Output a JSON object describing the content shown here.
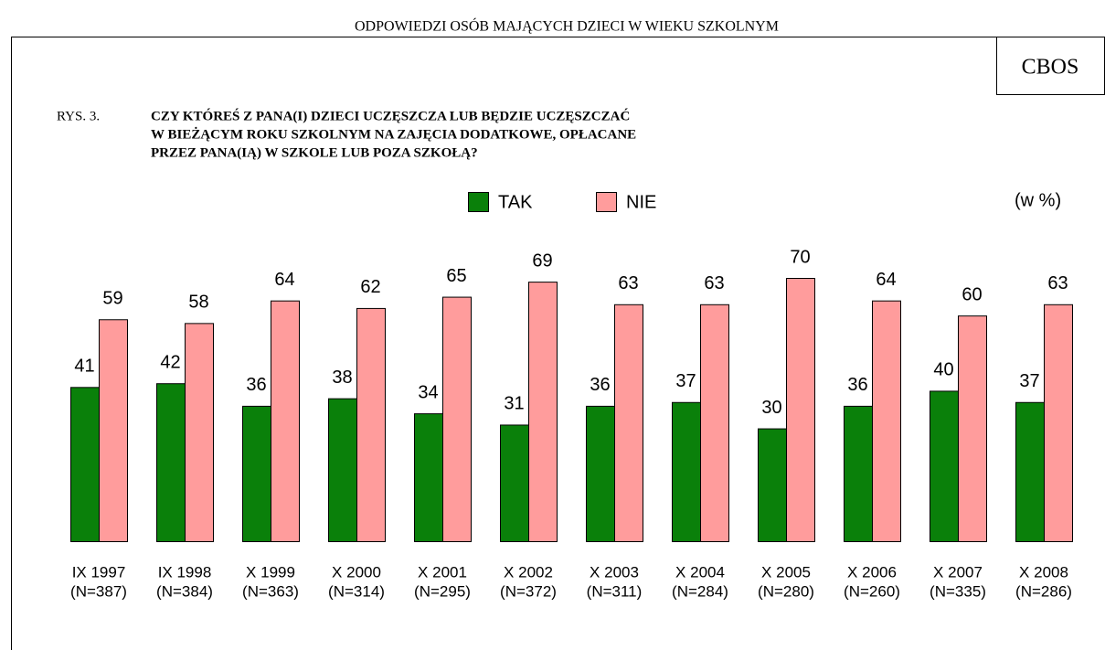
{
  "header": "ODPOWIEDZI OSÓB MAJĄCYCH DZIECI W WIEKU SZKOLNYM",
  "brand": "CBOS",
  "chart_data": {
    "type": "bar",
    "figure_label": "RYS. 3.",
    "title": [
      "CZY KTÓREŚ Z PANA(I) DZIECI UCZĘSZCZA LUB BĘDZIE UCZĘSZCZAĆ",
      "W BIEŻĄCYM ROKU SZKOLNYM NA ZAJĘCIA DODATKOWE, OPŁACANE",
      "PRZEZ PANA(IĄ) W SZKOLE LUB POZA SZKOŁĄ?"
    ],
    "unit_note": "(w %)",
    "categories": [
      "IX 1997",
      "IX 1998",
      "X 1999",
      "X 2000",
      "X 2001",
      "X 2002",
      "X 2003",
      "X 2004",
      "X 2005",
      "X 2006",
      "X 2007",
      "X 2008"
    ],
    "category_notes": [
      "(N=387)",
      "(N=384)",
      "(N=363)",
      "(N=314)",
      "(N=295)",
      "(N=372)",
      "(N=311)",
      "(N=284)",
      "(N=280)",
      "(N=260)",
      "(N=335)",
      "(N=286)"
    ],
    "series": [
      {
        "name": "TAK",
        "color": "#0a800a",
        "values": [
          41,
          42,
          36,
          38,
          34,
          31,
          36,
          37,
          30,
          36,
          40,
          37
        ]
      },
      {
        "name": "NIE",
        "color": "#ff9c9c",
        "values": [
          59,
          58,
          64,
          62,
          65,
          69,
          63,
          63,
          70,
          64,
          60,
          63
        ]
      }
    ]
  }
}
